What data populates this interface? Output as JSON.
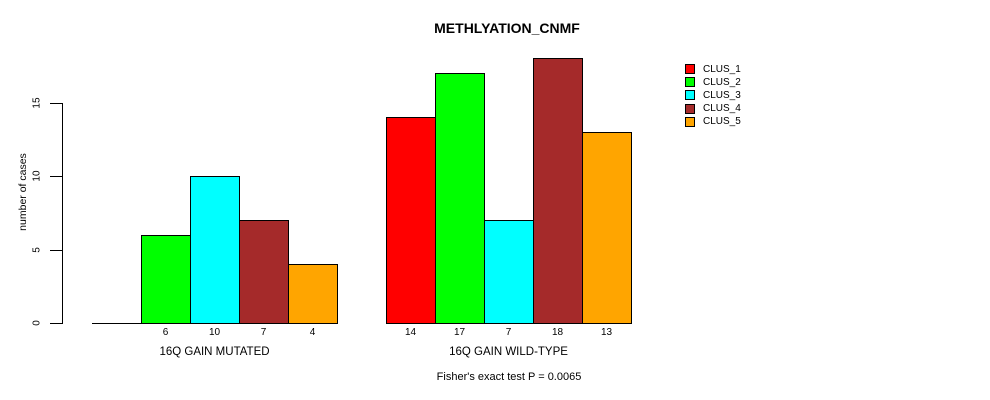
{
  "chart_data": {
    "type": "bar",
    "title": "METHLYATION_CNMF",
    "ylabel": "number of cases",
    "yticks": [
      0,
      5,
      10,
      15
    ],
    "ylim": [
      0,
      18
    ],
    "grid": false,
    "legend_position": "right",
    "series_names": [
      "CLUS_1",
      "CLUS_2",
      "CLUS_3",
      "CLUS_4",
      "CLUS_5"
    ],
    "colors": [
      "#FF0000",
      "#00FF00",
      "#00FFFF",
      "#A52A2A",
      "#FFA500"
    ],
    "groups": [
      {
        "label": "16Q GAIN MUTATED",
        "values": [
          0,
          6,
          10,
          7,
          4
        ]
      },
      {
        "label": "16Q GAIN WILD-TYPE",
        "values": [
          14,
          17,
          7,
          18,
          13
        ]
      }
    ],
    "bar_value_labels_shown": [
      "6",
      "10",
      "7",
      "4",
      "14",
      "17",
      "7",
      "18",
      "13"
    ],
    "footnote": "Fisher's exact test P = 0.0065"
  },
  "legend": {
    "items": [
      {
        "label": "CLUS_1",
        "color": "#FF0000"
      },
      {
        "label": "CLUS_2",
        "color": "#00FF00"
      },
      {
        "label": "CLUS_3",
        "color": "#00FFFF"
      },
      {
        "label": "CLUS_4",
        "color": "#A52A2A"
      },
      {
        "label": "CLUS_5",
        "color": "#FFA500"
      }
    ]
  }
}
